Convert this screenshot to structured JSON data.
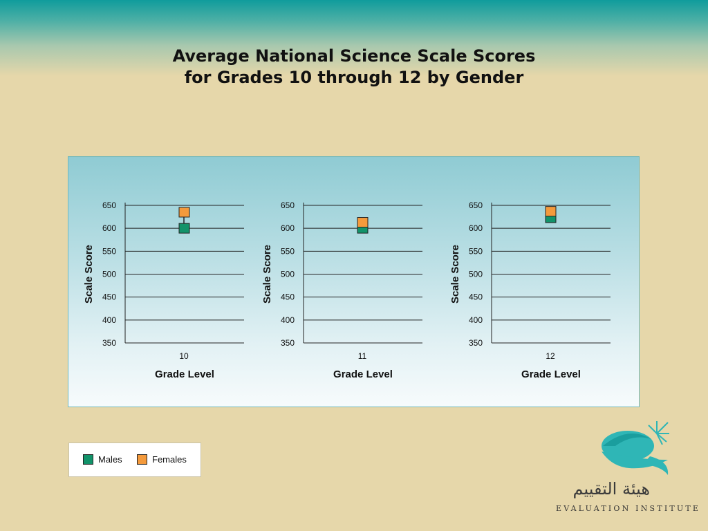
{
  "title": {
    "line1": "Average National Science Scale Scores",
    "line2": "for Grades 10 through 12 by Gender"
  },
  "colors": {
    "males": "#12936a",
    "females": "#f49a3c"
  },
  "chart_data": [
    {
      "type": "scatter",
      "category": "10",
      "xlabel": "Grade Level",
      "ylabel": "Scale Score",
      "yticks": [
        350,
        400,
        450,
        500,
        550,
        600,
        650
      ],
      "ylim": [
        350,
        650
      ],
      "series": [
        {
          "name": "Males",
          "values": [
            600
          ]
        },
        {
          "name": "Females",
          "values": [
            635
          ]
        }
      ]
    },
    {
      "type": "scatter",
      "category": "11",
      "xlabel": "Grade Level",
      "ylabel": "Scale Score",
      "yticks": [
        350,
        400,
        450,
        500,
        550,
        600,
        650
      ],
      "ylim": [
        350,
        650
      ],
      "series": [
        {
          "name": "Males",
          "values": [
            600
          ]
        },
        {
          "name": "Females",
          "values": [
            613
          ]
        }
      ]
    },
    {
      "type": "scatter",
      "category": "12",
      "xlabel": "Grade Level",
      "ylabel": "Scale Score",
      "yticks": [
        350,
        400,
        450,
        500,
        550,
        600,
        650
      ],
      "ylim": [
        350,
        650
      ],
      "series": [
        {
          "name": "Males",
          "values": [
            623
          ]
        },
        {
          "name": "Females",
          "values": [
            637
          ]
        }
      ]
    }
  ],
  "legend": {
    "males": "Males",
    "females": "Females"
  },
  "logo": {
    "arabic": "هيئة التقييم",
    "english": "EVALUATION INSTITUTE"
  }
}
